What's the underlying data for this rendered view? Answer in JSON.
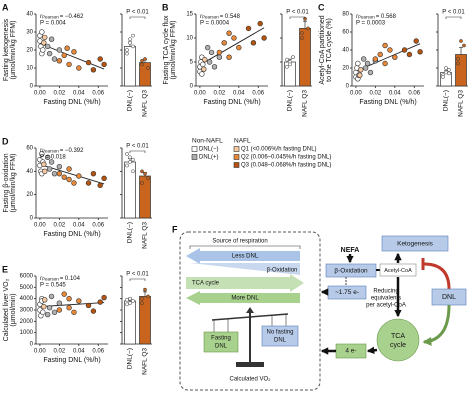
{
  "chart_data": [
    {
      "type": "scatter",
      "panel": "A",
      "y_label": [
        "Fasting ketogenesis",
        "(μmol/min/kg FFM)"
      ],
      "x_label": "Fasting DNL (%/h)",
      "r": "r",
      "r_sub": "Pearson",
      "r_text": "= −0.462",
      "p_text": "P = 0.004",
      "xlim": [
        -0.004,
        0.07
      ],
      "xticks": [
        {
          "value": 0,
          "label": "0.00"
        },
        {
          "value": 0.02,
          "label": "0.02"
        },
        {
          "value": 0.04,
          "label": "0.04"
        },
        {
          "value": 0.06,
          "label": "0.06"
        }
      ],
      "ylim": [
        0,
        40
      ],
      "yticks": [
        0,
        10,
        20,
        30,
        40
      ],
      "series": [
        {
          "color": "#ffffff",
          "x": [
            0,
            0,
            0.001,
            0.002,
            0.002,
            0.003
          ],
          "values": [
            28,
            25,
            22,
            30,
            18,
            20
          ]
        },
        {
          "color": "#b0b0b0",
          "x": [
            0.008,
            0.01,
            0.012,
            0.015,
            0.02
          ],
          "values": [
            22,
            18,
            26,
            15,
            20
          ]
        },
        {
          "color": "#f6c9a0",
          "x": [
            0.004,
            0.005
          ],
          "values": [
            24,
            27
          ]
        },
        {
          "color": "#e8893a",
          "x": [
            0.02,
            0.025,
            0.03,
            0.035,
            0.04,
            0.028
          ],
          "values": [
            14,
            17,
            12,
            19,
            10,
            21
          ]
        },
        {
          "color": "#b5530f",
          "x": [
            0.05,
            0.055,
            0.062,
            0.066
          ],
          "values": [
            13,
            9,
            15,
            12
          ]
        }
      ],
      "bars": {
        "categories": [
          "DNL(−)",
          "NAFL Q3"
        ],
        "colors": [
          "#ffffff",
          "#c8641e"
        ],
        "values": [
          22,
          13
        ],
        "errors": [
          2.5,
          1.5
        ],
        "points": [
          [
            20,
            24,
            28,
            18,
            26,
            22
          ],
          [
            12,
            15,
            10,
            14
          ]
        ],
        "p_text": "P < 0.01"
      }
    },
    {
      "type": "scatter",
      "panel": "B",
      "y_label": [
        "Fasting TCA cycle flux",
        "(μmol/min/kg FFM)"
      ],
      "x_label": "Fasting DNL (%/h)",
      "r": "r",
      "r_sub": "Pearson",
      "r_text": "= 0.548",
      "p_text": "P = 0.0004",
      "xlim": [
        -0.004,
        0.07
      ],
      "xticks": [
        {
          "value": 0,
          "label": "0.00"
        },
        {
          "value": 0.02,
          "label": "0.02"
        },
        {
          "value": 0.04,
          "label": "0.04"
        },
        {
          "value": 0.06,
          "label": "0.06"
        }
      ],
      "ylim": [
        0,
        15
      ],
      "yticks": [
        0,
        5,
        10,
        15
      ],
      "series": [
        {
          "color": "#ffffff",
          "x": [
            0,
            0,
            0.001,
            0.002,
            0.002,
            0.003
          ],
          "values": [
            3,
            4,
            5,
            2.5,
            6,
            4.5
          ]
        },
        {
          "color": "#b0b0b0",
          "x": [
            0.008,
            0.01,
            0.012,
            0.015,
            0.02
          ],
          "values": [
            8,
            5,
            7,
            4,
            6
          ]
        },
        {
          "color": "#f6c9a0",
          "x": [
            0.004,
            0.005
          ],
          "values": [
            3.5,
            5.5
          ]
        },
        {
          "color": "#e8893a",
          "x": [
            0.02,
            0.025,
            0.03,
            0.035,
            0.04,
            0.03
          ],
          "values": [
            7,
            9,
            6,
            10,
            8,
            11
          ]
        },
        {
          "color": "#b5530f",
          "x": [
            0.05,
            0.055,
            0.062,
            0.066
          ],
          "values": [
            12,
            9,
            13,
            10
          ]
        }
      ],
      "bars": {
        "categories": [
          "DNL(−)",
          "NAFL Q3"
        ],
        "colors": [
          "#ffffff",
          "#c8641e"
        ],
        "values": [
          5,
          12
        ],
        "errors": [
          0.6,
          1.5
        ],
        "points": [
          [
            4,
            5,
            6,
            5.5,
            4.5,
            6
          ],
          [
            10,
            14,
            12,
            11
          ]
        ],
        "p_text": "P < 0.01"
      }
    },
    {
      "type": "scatter",
      "panel": "C",
      "y_label": [
        "Acetyl-CoA partitioned",
        "to the TCA cycle (%)"
      ],
      "x_label": "Fasting DNL (%/h)",
      "r": "r",
      "r_sub": "Pearson",
      "r_text": "= 0.568",
      "p_text": "P = 0.0003",
      "xlim": [
        -0.004,
        0.07
      ],
      "xticks": [
        {
          "value": 0,
          "label": "0.00"
        },
        {
          "value": 0.02,
          "label": "0.02"
        },
        {
          "value": 0.04,
          "label": "0.04"
        },
        {
          "value": 0.06,
          "label": "0.06"
        }
      ],
      "ylim": [
        0,
        80
      ],
      "yticks": [
        0,
        20,
        40,
        60,
        80
      ],
      "series": [
        {
          "color": "#ffffff",
          "x": [
            0,
            0,
            0.001,
            0.002,
            0.002,
            0.003
          ],
          "values": [
            10,
            15,
            20,
            8,
            25,
            12
          ]
        },
        {
          "color": "#b0b0b0",
          "x": [
            0.008,
            0.01,
            0.012,
            0.015,
            0.02
          ],
          "values": [
            30,
            20,
            25,
            15,
            28
          ]
        },
        {
          "color": "#f6c9a0",
          "x": [
            0.004,
            0.005
          ],
          "values": [
            12,
            18
          ]
        },
        {
          "color": "#e8893a",
          "x": [
            0.02,
            0.025,
            0.03,
            0.035,
            0.04,
            0.03
          ],
          "values": [
            30,
            35,
            25,
            40,
            32,
            45
          ]
        },
        {
          "color": "#b5530f",
          "x": [
            0.05,
            0.055,
            0.062,
            0.066
          ],
          "values": [
            40,
            35,
            50,
            38
          ]
        }
      ],
      "bars": {
        "categories": [
          "DNL(−)",
          "NAFL Q3"
        ],
        "colors": [
          "#ffffff",
          "#c8641e"
        ],
        "values": [
          15,
          35
        ],
        "errors": [
          2,
          8
        ],
        "points": [
          [
            12,
            15,
            18,
            10,
            20,
            14
          ],
          [
            25,
            50,
            45,
            30
          ]
        ],
        "p_text": "P < 0.01"
      }
    },
    {
      "type": "scatter",
      "panel": "D",
      "y_label": [
        "Fasting β-oxidation",
        "(μmol/min/kg FFM)"
      ],
      "x_label": "Fasting DNL (%/h)",
      "r": "r",
      "r_sub": "Pearson",
      "r_text": "= −0.392",
      "p_text": "P = 0.018",
      "xlim": [
        -0.004,
        0.07
      ],
      "xticks": [
        {
          "value": 0,
          "label": "0.00"
        },
        {
          "value": 0.02,
          "label": "0.02"
        },
        {
          "value": 0.04,
          "label": "0.04"
        },
        {
          "value": 0.06,
          "label": "0.06"
        }
      ],
      "ylim": [
        0,
        60
      ],
      "yticks": [
        0,
        20,
        40,
        60
      ],
      "series": [
        {
          "color": "#ffffff",
          "x": [
            0,
            0,
            0.001,
            0.002,
            0.002,
            0.003
          ],
          "values": [
            45,
            50,
            40,
            55,
            38,
            48
          ]
        },
        {
          "color": "#b0b0b0",
          "x": [
            0.008,
            0.01,
            0.012,
            0.015,
            0.02
          ],
          "values": [
            52,
            42,
            48,
            38,
            44
          ]
        },
        {
          "color": "#f6c9a0",
          "x": [
            0.004,
            0.005
          ],
          "values": [
            46,
            40
          ]
        },
        {
          "color": "#e8893a",
          "x": [
            0.02,
            0.025,
            0.03,
            0.035,
            0.04,
            0.03
          ],
          "values": [
            38,
            35,
            42,
            30,
            36,
            33
          ]
        },
        {
          "color": "#b5530f",
          "x": [
            0.05,
            0.055,
            0.062,
            0.066
          ],
          "values": [
            30,
            38,
            28,
            34
          ]
        }
      ],
      "bars": {
        "categories": [
          "DNL(−)",
          "NAFL Q3"
        ],
        "colors": [
          "#ffffff",
          "#c8641e"
        ],
        "values": [
          48,
          36
        ],
        "errors": [
          3,
          3
        ],
        "points": [
          [
            45,
            52,
            40,
            55,
            48,
            50
          ],
          [
            30,
            38,
            34,
            40
          ]
        ],
        "p_text": "P < 0.01"
      }
    },
    {
      "type": "scatter",
      "panel": "E",
      "y_label": [
        "Calculated liver VO₂",
        "(μmol/min)"
      ],
      "x_label": "Fasting DNL (%/h)",
      "r": "r",
      "r_sub": "Pearson",
      "r_text": "= 0.104",
      "p_text": "P = 0.545",
      "xlim": [
        -0.004,
        0.07
      ],
      "xticks": [
        {
          "value": 0,
          "label": "0.00"
        },
        {
          "value": 0.02,
          "label": "0.02"
        },
        {
          "value": 0.04,
          "label": "0.04"
        },
        {
          "value": 0.06,
          "label": "0.06"
        }
      ],
      "ylim": [
        0,
        6000
      ],
      "yticks": [
        0,
        1000,
        2000,
        3000,
        4000,
        5000,
        6000
      ],
      "series": [
        {
          "color": "#ffffff",
          "x": [
            0,
            0,
            0.001,
            0.002,
            0.002,
            0.003
          ],
          "values": [
            3000,
            3500,
            2500,
            4000,
            3800,
            2800
          ]
        },
        {
          "color": "#b0b0b0",
          "x": [
            0.008,
            0.01,
            0.012,
            0.015,
            0.02
          ],
          "values": [
            2600,
            3200,
            4200,
            2800,
            3600
          ]
        },
        {
          "color": "#f6c9a0",
          "x": [
            0.004,
            0.005
          ],
          "values": [
            3300,
            3900
          ]
        },
        {
          "color": "#e8893a",
          "x": [
            0.02,
            0.025,
            0.03,
            0.035,
            0.04,
            0.03
          ],
          "values": [
            3000,
            4400,
            3200,
            2800,
            3800,
            4000
          ]
        },
        {
          "color": "#b5530f",
          "x": [
            0.05,
            0.055,
            0.062,
            0.066
          ],
          "values": [
            3400,
            2900,
            3700,
            4100
          ]
        }
      ],
      "bars": {
        "categories": [
          "DNL(−)",
          "NAFL Q3"
        ],
        "colors": [
          "#ffffff",
          "#c8641e"
        ],
        "values": [
          3800,
          4200
        ],
        "errors": [
          250,
          400
        ],
        "points": [
          [
            3500,
            4000,
            3800,
            3900,
            3600
          ],
          [
            3600,
            4800,
            4200,
            4000
          ]
        ],
        "p_text": "P < 0.01"
      }
    }
  ],
  "legend": {
    "groups": [
      {
        "title": "Non-NAFL",
        "entries": [
          {
            "label": "DNL(−)",
            "color": "#ffffff"
          },
          {
            "label": "DNL(+)",
            "color": "#b0b0b0"
          }
        ]
      },
      {
        "title": "NAFL",
        "entries": [
          {
            "label": "Q1 (<0.006%/h fasting DNL)",
            "color": "#f6c9a0"
          },
          {
            "label": "Q2 (0.006–0.045%/h fasting DNL)",
            "color": "#e8893a"
          },
          {
            "label": "Q3 (0.048–0.068%/h fasting DNL)",
            "color": "#b5530f"
          }
        ]
      }
    ]
  },
  "diagram": {
    "label": "F",
    "source_title": "Source of respiration",
    "arrows": [
      "Less DNL",
      "β-Oxidation",
      "TCA cycle",
      "More DNL"
    ],
    "scale": {
      "left": [
        "Fasting",
        "DNL"
      ],
      "right": [
        "No fasting",
        "DNL"
      ],
      "caption": "Calculated VO₂"
    },
    "nodes": {
      "nefa": "NEFA",
      "ketogenesis": "Ketogenesis",
      "beta_ox": "β-Oxidation",
      "acetyl_coa": "Acetyl-CoA",
      "dnl": "DNL",
      "electrons_beta": "~1.75 e-",
      "reducing": [
        "Reducing",
        "equivalents",
        "per acetyl-CoA"
      ],
      "tca": [
        "TCA",
        "cycle"
      ],
      "electrons_tca": "4 e-"
    }
  }
}
